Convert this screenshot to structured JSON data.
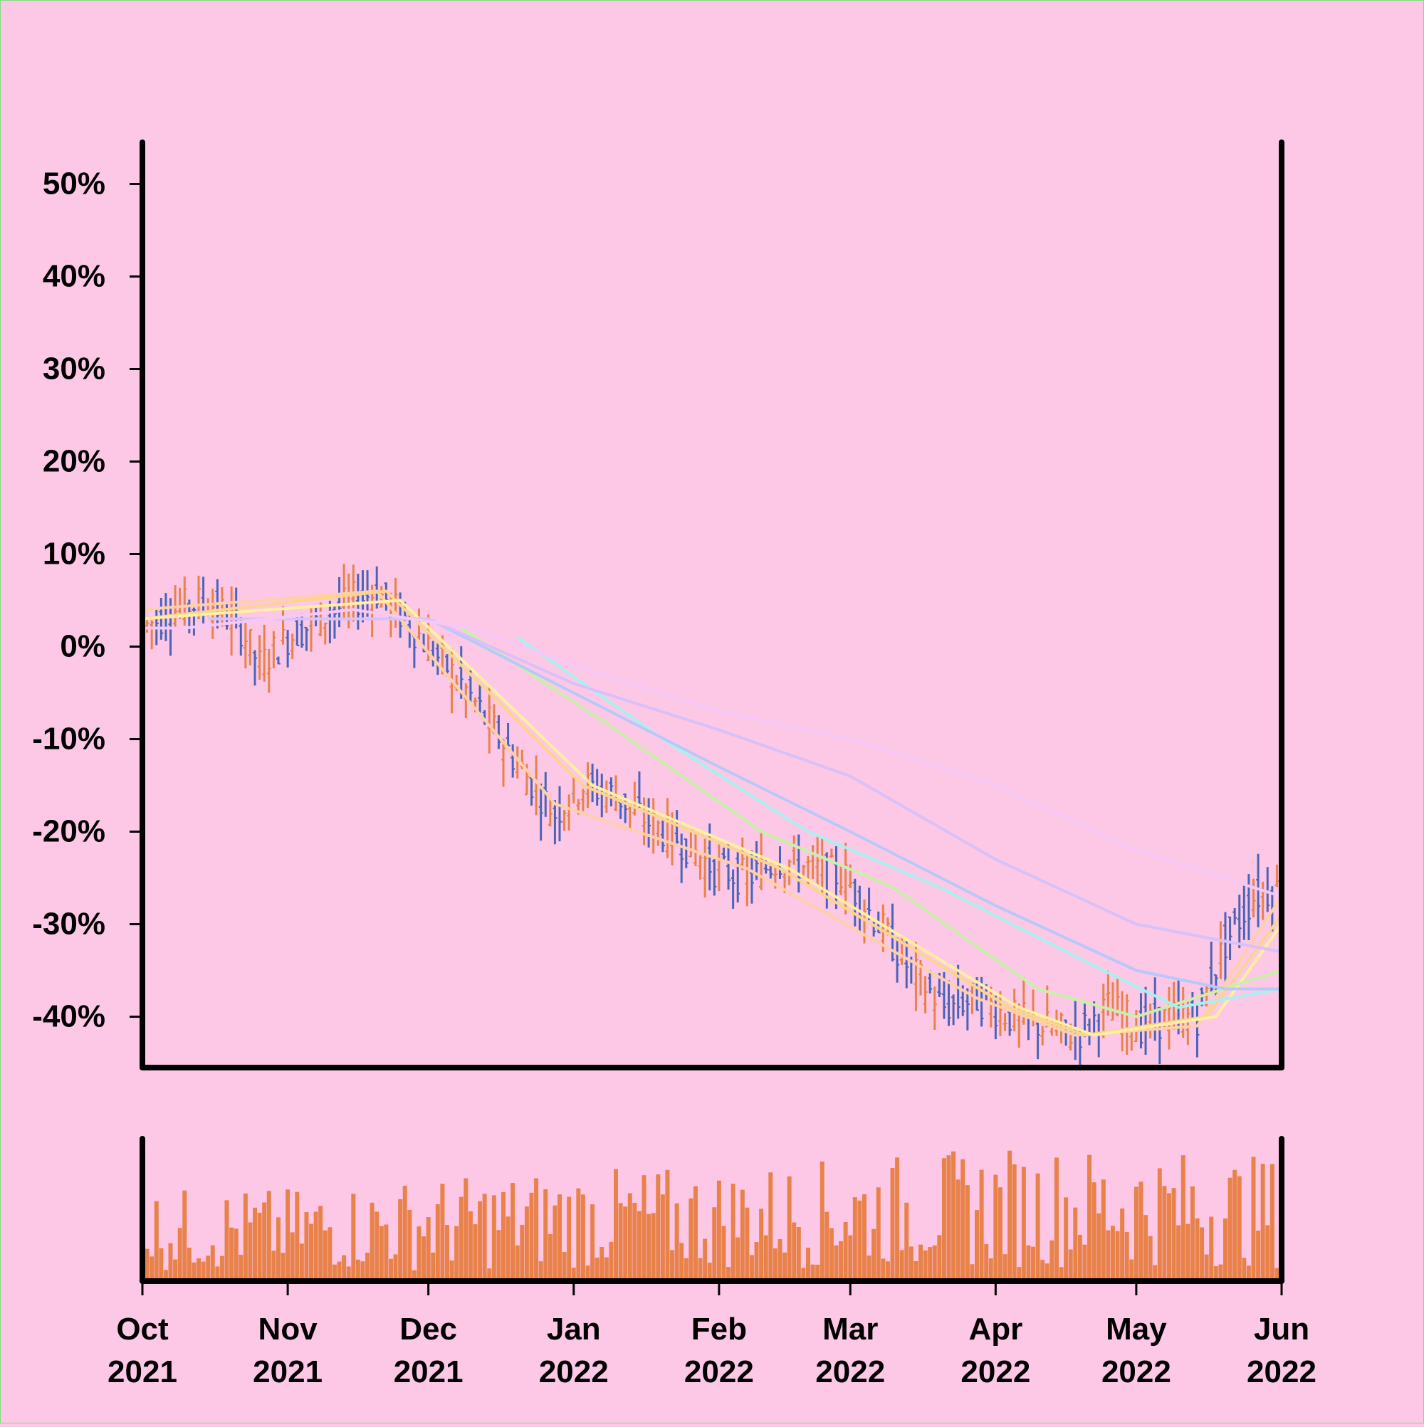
{
  "chart_data": [
    {
      "type": "line",
      "subtype": "ohlc-with-moving-averages",
      "title": "",
      "xlabel": "",
      "ylabel": "",
      "y_tick_labels": [
        "-40%",
        "-30%",
        "-20%",
        "-10%",
        "0%",
        "10%",
        "20%",
        "30%",
        "40%",
        "50%"
      ],
      "y_ticks": [
        -40,
        -30,
        -20,
        -10,
        0,
        10,
        20,
        30,
        40,
        50
      ],
      "ylim": [
        -45.5,
        54.5
      ],
      "x_range": [
        "2021-10-01",
        "2022-06-01"
      ],
      "colors": {
        "up": "#e8824a",
        "down": "#4a64b8"
      },
      "price_path": [
        [
          "2021-10-01",
          2
        ],
        [
          "2021-10-08",
          4
        ],
        [
          "2021-10-15",
          5
        ],
        [
          "2021-10-22",
          2
        ],
        [
          "2021-10-26",
          -2
        ],
        [
          "2021-11-01",
          1
        ],
        [
          "2021-11-08",
          3
        ],
        [
          "2021-11-15",
          5
        ],
        [
          "2021-11-20",
          6
        ],
        [
          "2021-11-26",
          3
        ],
        [
          "2021-12-01",
          0
        ],
        [
          "2021-12-08",
          -4
        ],
        [
          "2021-12-15",
          -9
        ],
        [
          "2021-12-22",
          -14
        ],
        [
          "2021-12-28",
          -18
        ],
        [
          "2022-01-03",
          -15
        ],
        [
          "2022-01-10",
          -16
        ],
        [
          "2022-01-17",
          -19
        ],
        [
          "2022-01-24",
          -21
        ],
        [
          "2022-01-31",
          -24
        ],
        [
          "2022-02-07",
          -25
        ],
        [
          "2022-02-14",
          -23
        ],
        [
          "2022-02-21",
          -24
        ],
        [
          "2022-02-28",
          -25
        ],
        [
          "2022-03-07",
          -30
        ],
        [
          "2022-03-14",
          -35
        ],
        [
          "2022-03-21",
          -39
        ],
        [
          "2022-03-28",
          -38
        ],
        [
          "2022-04-04",
          -40
        ],
        [
          "2022-04-11",
          -41
        ],
        [
          "2022-04-18",
          -42
        ],
        [
          "2022-04-25",
          -39
        ],
        [
          "2022-05-02",
          -41
        ],
        [
          "2022-05-09",
          -40
        ],
        [
          "2022-05-14",
          -40
        ],
        [
          "2022-05-20",
          -32
        ],
        [
          "2022-05-26",
          -27
        ],
        [
          "2022-06-01",
          -26
        ]
      ],
      "series": [
        {
          "color": "#ffd0a8",
          "path": [
            [
              "2021-10-01",
              4
            ],
            [
              "2021-11-20",
              6
            ],
            [
              "2021-12-28",
              -17
            ],
            [
              "2022-02-07",
              -24
            ],
            [
              "2022-03-28",
              -38
            ],
            [
              "2022-04-18",
              -42
            ],
            [
              "2022-05-14",
              -41
            ],
            [
              "2022-06-01",
              -27
            ]
          ]
        },
        {
          "color": "#fcd48c",
          "path": [
            [
              "2021-10-01",
              3
            ],
            [
              "2021-11-22",
              6
            ],
            [
              "2022-01-03",
              -15
            ],
            [
              "2022-02-14",
              -24
            ],
            [
              "2022-04-04",
              -39
            ],
            [
              "2022-04-20",
              -42
            ],
            [
              "2022-05-16",
              -40
            ],
            [
              "2022-06-01",
              -29
            ]
          ]
        },
        {
          "color": "#fff0a0",
          "path": [
            [
              "2021-10-01",
              3
            ],
            [
              "2021-11-25",
              5
            ],
            [
              "2022-01-05",
              -15
            ],
            [
              "2022-02-16",
              -24
            ],
            [
              "2022-04-06",
              -39
            ],
            [
              "2022-04-22",
              -42
            ],
            [
              "2022-05-18",
              -40
            ],
            [
              "2022-06-01",
              -30
            ]
          ]
        },
        {
          "color": "#c8f0a8",
          "path": [
            [
              "2021-12-08",
              2
            ],
            [
              "2022-01-10",
              -9
            ],
            [
              "2022-02-10",
              -20
            ],
            [
              "2022-03-10",
              -26
            ],
            [
              "2022-04-10",
              -37
            ],
            [
              "2022-05-01",
              -40
            ],
            [
              "2022-06-01",
              -35
            ]
          ]
        },
        {
          "color": "#a8f0f0",
          "path": [
            [
              "2021-12-20",
              1
            ],
            [
              "2022-01-20",
              -10
            ],
            [
              "2022-02-20",
              -20
            ],
            [
              "2022-03-20",
              -26
            ],
            [
              "2022-04-20",
              -34
            ],
            [
              "2022-05-10",
              -39
            ],
            [
              "2022-06-01",
              -37
            ]
          ]
        },
        {
          "color": "#b8c8f8",
          "path": [
            [
              "2021-12-01",
              3
            ],
            [
              "2022-01-01",
              -5
            ],
            [
              "2022-02-01",
              -13
            ],
            [
              "2022-03-01",
              -20
            ],
            [
              "2022-04-01",
              -28
            ],
            [
              "2022-05-01",
              -35
            ],
            [
              "2022-05-20",
              -37
            ],
            [
              "2022-06-01",
              -37
            ]
          ]
        },
        {
          "color": "#d8c0f8",
          "path": [
            [
              "2021-10-15",
              3
            ],
            [
              "2021-12-01",
              3
            ],
            [
              "2022-01-01",
              -4
            ],
            [
              "2022-02-01",
              -9
            ],
            [
              "2022-03-01",
              -14
            ],
            [
              "2022-04-01",
              -23
            ],
            [
              "2022-05-01",
              -30
            ],
            [
              "2022-06-01",
              -33
            ]
          ]
        },
        {
          "color": "#f6c8f8",
          "path": [
            [
              "2021-10-01",
              2
            ],
            [
              "2021-10-10",
              2
            ],
            [
              "2021-11-15",
              4
            ],
            [
              "2021-12-10",
              2
            ],
            [
              "2022-01-01",
              -2
            ],
            [
              "2022-02-01",
              -7
            ],
            [
              "2022-03-01",
              -10
            ],
            [
              "2022-04-01",
              -15
            ],
            [
              "2022-05-01",
              -22
            ],
            [
              "2022-06-01",
              -27
            ]
          ]
        }
      ]
    },
    {
      "type": "bar",
      "subtype": "volume",
      "title": "",
      "color": "#e8824a",
      "x_tick_labels": [
        [
          "Oct",
          "2021"
        ],
        [
          "Nov",
          "2021"
        ],
        [
          "Dec",
          "2021"
        ],
        [
          "Jan",
          "2022"
        ],
        [
          "Feb",
          "2022"
        ],
        [
          "Mar",
          "2022"
        ],
        [
          "Apr",
          "2022"
        ],
        [
          "May",
          "2022"
        ],
        [
          "Jun",
          "2022"
        ]
      ],
      "x_ticks": [
        "2021-10-01",
        "2021-11-01",
        "2021-12-01",
        "2022-01-01",
        "2022-02-01",
        "2022-03-01",
        "2022-04-01",
        "2022-05-01",
        "2022-06-01"
      ],
      "level_path": [
        [
          "2021-10-01",
          0.45
        ],
        [
          "2021-11-01",
          0.45
        ],
        [
          "2021-12-01",
          0.5
        ],
        [
          "2022-01-01",
          0.55
        ],
        [
          "2022-02-01",
          0.55
        ],
        [
          "2022-03-01",
          0.6
        ],
        [
          "2022-04-01",
          0.65
        ],
        [
          "2022-05-01",
          0.65
        ],
        [
          "2022-06-01",
          0.6
        ]
      ]
    }
  ]
}
